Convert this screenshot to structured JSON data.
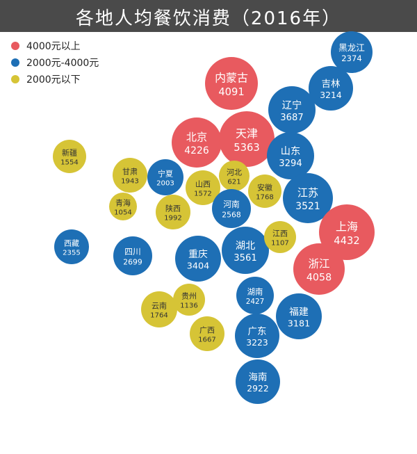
{
  "title": "各地人均餐饮消费（2016年）",
  "colors": {
    "high": "#e85a5f",
    "mid": "#1e6fb5",
    "low": "#d6c436"
  },
  "legend": [
    {
      "label": "4000元以上",
      "group": "high"
    },
    {
      "label": "2000元-4000元",
      "group": "mid"
    },
    {
      "label": "2000元以下",
      "group": "low"
    }
  ],
  "chart_data": {
    "type": "bubble",
    "title": "各地人均餐饮消费（2016年）",
    "unit": "元",
    "points": [
      {
        "name": "黑龙江",
        "value": 2374,
        "group": "mid"
      },
      {
        "name": "吉林",
        "value": 3214,
        "group": "mid"
      },
      {
        "name": "内蒙古",
        "value": 4091,
        "group": "high"
      },
      {
        "name": "辽宁",
        "value": 3687,
        "group": "mid"
      },
      {
        "name": "北京",
        "value": 4226,
        "group": "high"
      },
      {
        "name": "天津",
        "value": 5363,
        "group": "high"
      },
      {
        "name": "山东",
        "value": 3294,
        "group": "mid"
      },
      {
        "name": "新疆",
        "value": 1554,
        "group": "low"
      },
      {
        "name": "甘肃",
        "value": 1943,
        "group": "low"
      },
      {
        "name": "宁夏",
        "value": 2003,
        "group": "mid"
      },
      {
        "name": "山西",
        "value": 1572,
        "group": "low"
      },
      {
        "name": "河北",
        "value": 621,
        "group": "low"
      },
      {
        "name": "安徽",
        "value": 1768,
        "group": "low"
      },
      {
        "name": "江苏",
        "value": 3521,
        "group": "mid"
      },
      {
        "name": "青海",
        "value": 1054,
        "group": "low"
      },
      {
        "name": "陕西",
        "value": 1992,
        "group": "low"
      },
      {
        "name": "河南",
        "value": 2568,
        "group": "mid"
      },
      {
        "name": "上海",
        "value": 4432,
        "group": "high"
      },
      {
        "name": "西藏",
        "value": 2355,
        "group": "mid"
      },
      {
        "name": "四川",
        "value": 2699,
        "group": "mid"
      },
      {
        "name": "重庆",
        "value": 3404,
        "group": "mid"
      },
      {
        "name": "湖北",
        "value": 3561,
        "group": "mid"
      },
      {
        "name": "江西",
        "value": 1107,
        "group": "low"
      },
      {
        "name": "浙江",
        "value": 4058,
        "group": "high"
      },
      {
        "name": "云南",
        "value": 1764,
        "group": "low"
      },
      {
        "name": "贵州",
        "value": 1136,
        "group": "low"
      },
      {
        "name": "湖南",
        "value": 2427,
        "group": "mid"
      },
      {
        "name": "福建",
        "value": 3181,
        "group": "mid"
      },
      {
        "name": "广西",
        "value": 1667,
        "group": "low"
      },
      {
        "name": "广东",
        "value": 3223,
        "group": "mid"
      },
      {
        "name": "海南",
        "value": 2922,
        "group": "mid"
      }
    ]
  }
}
